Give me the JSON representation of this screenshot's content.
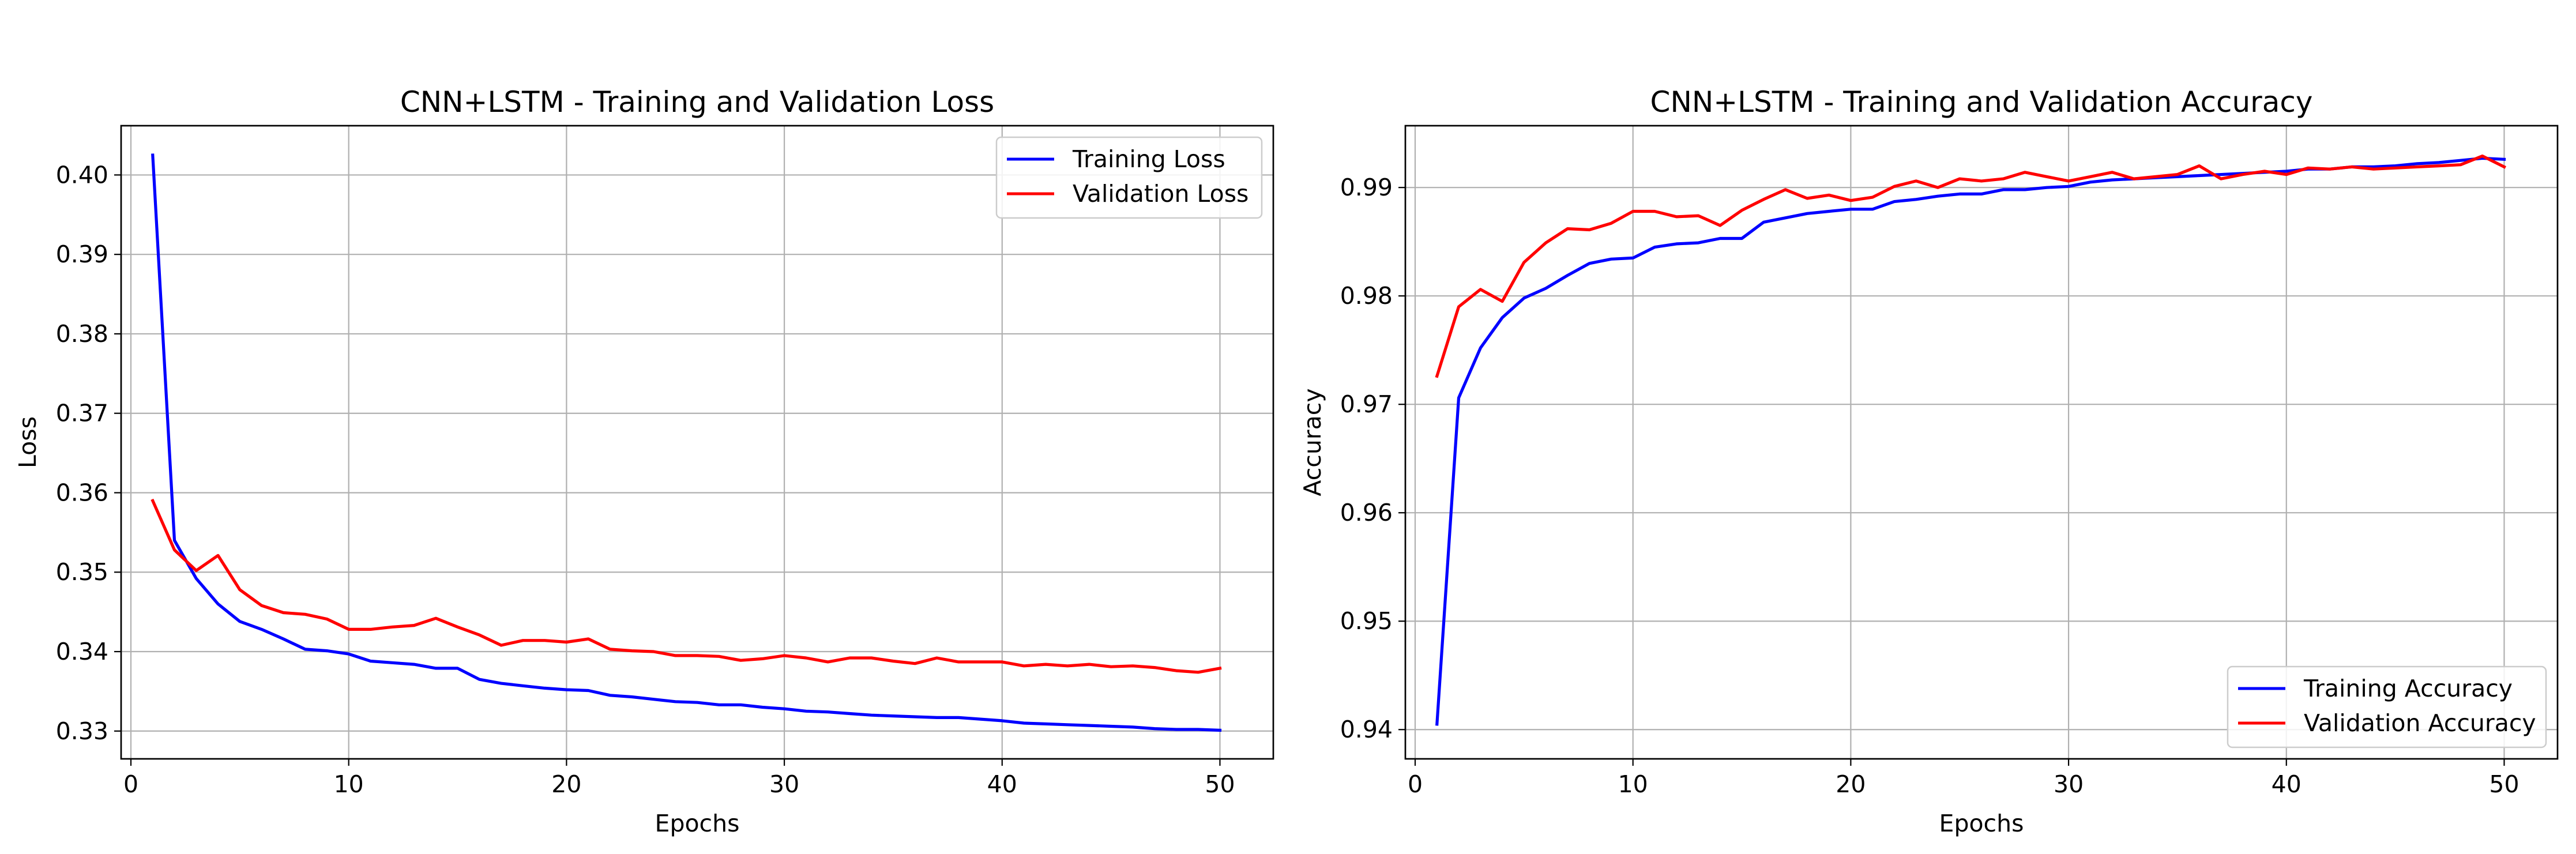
{
  "chart_data": [
    {
      "type": "line",
      "title": "CNN+LSTM - Training and Validation Loss",
      "xlabel": "Epochs",
      "ylabel": "Loss",
      "xlim": [
        -0.45,
        52.45
      ],
      "ylim": [
        0.3265,
        0.4062
      ],
      "xticks": [
        0,
        10,
        20,
        30,
        40,
        50
      ],
      "yticks": [
        0.33,
        0.34,
        0.35,
        0.36,
        0.37,
        0.38,
        0.39,
        0.4
      ],
      "ytick_labels": [
        "0.33",
        "0.34",
        "0.35",
        "0.36",
        "0.37",
        "0.38",
        "0.39",
        "0.40"
      ],
      "grid": true,
      "legend_position": "upper right",
      "x": [
        1,
        2,
        3,
        4,
        5,
        6,
        7,
        8,
        9,
        10,
        11,
        12,
        13,
        14,
        15,
        16,
        17,
        18,
        19,
        20,
        21,
        22,
        23,
        24,
        25,
        26,
        27,
        28,
        29,
        30,
        31,
        32,
        33,
        34,
        35,
        36,
        37,
        38,
        39,
        40,
        41,
        42,
        43,
        44,
        45,
        46,
        47,
        48,
        49,
        50
      ],
      "series": [
        {
          "name": "Training Loss",
          "color": "#0000ff",
          "values": [
            0.4025,
            0.354,
            0.3492,
            0.346,
            0.3438,
            0.3428,
            0.3416,
            0.3403,
            0.3401,
            0.3397,
            0.3388,
            0.3386,
            0.3384,
            0.3379,
            0.3379,
            0.3365,
            0.336,
            0.3357,
            0.3354,
            0.3352,
            0.3351,
            0.3345,
            0.3343,
            0.334,
            0.3337,
            0.3336,
            0.3333,
            0.3333,
            0.333,
            0.3328,
            0.3325,
            0.3324,
            0.3322,
            0.332,
            0.3319,
            0.3318,
            0.3317,
            0.3317,
            0.3315,
            0.3313,
            0.331,
            0.3309,
            0.3308,
            0.3307,
            0.3306,
            0.3305,
            0.3303,
            0.3302,
            0.3302,
            0.3301
          ]
        },
        {
          "name": "Validation Loss",
          "color": "#ff0000",
          "values": [
            0.359,
            0.3528,
            0.3502,
            0.3521,
            0.3478,
            0.3458,
            0.3449,
            0.3447,
            0.3441,
            0.3428,
            0.3428,
            0.3431,
            0.3433,
            0.3442,
            0.3431,
            0.3421,
            0.3408,
            0.3414,
            0.3414,
            0.3412,
            0.3416,
            0.3403,
            0.3401,
            0.34,
            0.3395,
            0.3395,
            0.3394,
            0.3389,
            0.3391,
            0.3395,
            0.3392,
            0.3387,
            0.3392,
            0.3392,
            0.3388,
            0.3385,
            0.3392,
            0.3387,
            0.3387,
            0.3387,
            0.3382,
            0.3384,
            0.3382,
            0.3384,
            0.3381,
            0.3382,
            0.338,
            0.3376,
            0.3374,
            0.3379
          ]
        }
      ]
    },
    {
      "type": "line",
      "title": "CNN+LSTM - Training and Validation Accuracy",
      "xlabel": "Epochs",
      "ylabel": "Accuracy",
      "xlim": [
        -0.45,
        52.45
      ],
      "ylim": [
        0.9373,
        0.9957
      ],
      "xticks": [
        0,
        10,
        20,
        30,
        40,
        50
      ],
      "yticks": [
        0.94,
        0.95,
        0.96,
        0.97,
        0.98,
        0.99
      ],
      "ytick_labels": [
        "0.94",
        "0.95",
        "0.96",
        "0.97",
        "0.98",
        "0.99"
      ],
      "grid": true,
      "legend_position": "lower right",
      "x": [
        1,
        2,
        3,
        4,
        5,
        6,
        7,
        8,
        9,
        10,
        11,
        12,
        13,
        14,
        15,
        16,
        17,
        18,
        19,
        20,
        21,
        22,
        23,
        24,
        25,
        26,
        27,
        28,
        29,
        30,
        31,
        32,
        33,
        34,
        35,
        36,
        37,
        38,
        39,
        40,
        41,
        42,
        43,
        44,
        45,
        46,
        47,
        48,
        49,
        50
      ],
      "series": [
        {
          "name": "Training Accuracy",
          "color": "#0000ff",
          "values": [
            0.9405,
            0.9706,
            0.9752,
            0.978,
            0.9798,
            0.9807,
            0.9819,
            0.983,
            0.9834,
            0.9835,
            0.9845,
            0.9848,
            0.9849,
            0.9853,
            0.9853,
            0.9868,
            0.9872,
            0.9876,
            0.9878,
            0.988,
            0.988,
            0.9887,
            0.9889,
            0.9892,
            0.9894,
            0.9894,
            0.9898,
            0.9898,
            0.99,
            0.9901,
            0.9905,
            0.9907,
            0.9908,
            0.9909,
            0.991,
            0.9911,
            0.9912,
            0.9913,
            0.9914,
            0.9915,
            0.9917,
            0.9917,
            0.9919,
            0.9919,
            0.992,
            0.9922,
            0.9923,
            0.9925,
            0.9927,
            0.9926
          ]
        },
        {
          "name": "Validation Accuracy",
          "color": "#ff0000",
          "values": [
            0.9726,
            0.979,
            0.9806,
            0.9795,
            0.9831,
            0.9849,
            0.9862,
            0.9861,
            0.9867,
            0.9878,
            0.9878,
            0.9873,
            0.9874,
            0.9865,
            0.9879,
            0.9889,
            0.9898,
            0.989,
            0.9893,
            0.9888,
            0.9891,
            0.9901,
            0.9906,
            0.99,
            0.9908,
            0.9906,
            0.9908,
            0.9914,
            0.991,
            0.9906,
            0.991,
            0.9914,
            0.9908,
            0.991,
            0.9912,
            0.992,
            0.9908,
            0.9912,
            0.9915,
            0.9912,
            0.9918,
            0.9917,
            0.9919,
            0.9917,
            0.9918,
            0.9919,
            0.992,
            0.9921,
            0.9929,
            0.9919
          ]
        }
      ]
    }
  ]
}
